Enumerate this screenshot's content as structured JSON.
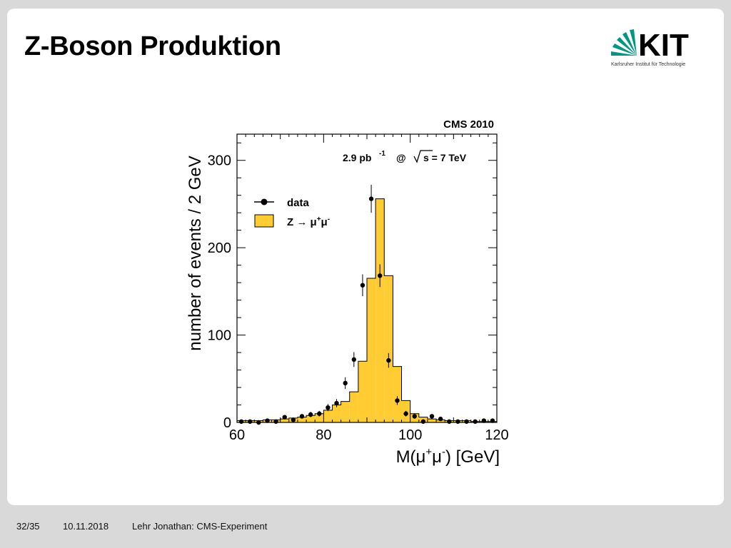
{
  "slide": {
    "title": "Z-Boson Produktion",
    "logo": {
      "text": "KIT",
      "subtitle": "Karlsruher Institut für Technologie",
      "color": "#009682"
    }
  },
  "footer": {
    "page": "32/35",
    "date": "10.11.2018",
    "text": "Lehr Jonathan: CMS-Experiment"
  },
  "chart_data": {
    "type": "bar",
    "experiment_label": "CMS 2010",
    "luminosity_label": "2.9 pb",
    "luminosity_exp": "-1",
    "energy_at": "@",
    "energy_label": "s = 7 TeV",
    "xlabel_main": "M(μ",
    "xlabel_sup1": "+",
    "xlabel_mid": "μ",
    "xlabel_sup2": "-",
    "xlabel_end": ") [GeV]",
    "ylabel": "number of events / 2 GeV",
    "xlim": [
      60,
      120
    ],
    "ylim": [
      0,
      330
    ],
    "xticks": [
      "60",
      "80",
      "100",
      "120"
    ],
    "yticks": [
      "0",
      "100",
      "200",
      "300"
    ],
    "legend": {
      "data_label": "data",
      "mc_label_main": "Z → μ",
      "mc_label_sup1": "+",
      "mc_label_mid": "μ",
      "mc_label_sup2": "-"
    },
    "fill_color": "#ffcc33",
    "series": [
      {
        "name": "Z → μ+μ-",
        "bin_edges": [
          60,
          62,
          64,
          66,
          68,
          70,
          72,
          74,
          76,
          78,
          80,
          82,
          84,
          86,
          88,
          90,
          92,
          94,
          96,
          98,
          100,
          102,
          104,
          106,
          108,
          110,
          112,
          114,
          116,
          118,
          120
        ],
        "values": [
          2,
          2,
          2,
          3,
          3,
          4,
          5,
          6,
          8,
          10,
          14,
          20,
          24,
          35,
          70,
          165,
          256,
          168,
          64,
          25,
          10,
          6,
          4,
          3,
          2,
          2,
          2,
          1,
          1,
          1
        ]
      },
      {
        "name": "data",
        "x": [
          61,
          63,
          65,
          67,
          69,
          71,
          73,
          75,
          77,
          79,
          81,
          83,
          85,
          87,
          89,
          91,
          93,
          95,
          97,
          99,
          101,
          103,
          105,
          107,
          109,
          111,
          113,
          115,
          117,
          119
        ],
        "y": [
          1,
          1,
          0,
          2,
          1,
          6,
          3,
          7,
          9,
          10,
          17,
          22,
          45,
          72,
          157,
          256,
          168,
          71,
          25,
          10,
          7,
          1,
          7,
          4,
          1,
          1,
          1,
          1,
          2,
          2
        ],
        "err": [
          1,
          1,
          0,
          1.4,
          1,
          2.4,
          1.7,
          2.6,
          3,
          3.2,
          4.1,
          4.7,
          6.7,
          8.5,
          12.5,
          16,
          13,
          8.4,
          5,
          3.2,
          2.6,
          1,
          2.6,
          2,
          1,
          1,
          1,
          1,
          1.4,
          1.4
        ]
      }
    ]
  }
}
